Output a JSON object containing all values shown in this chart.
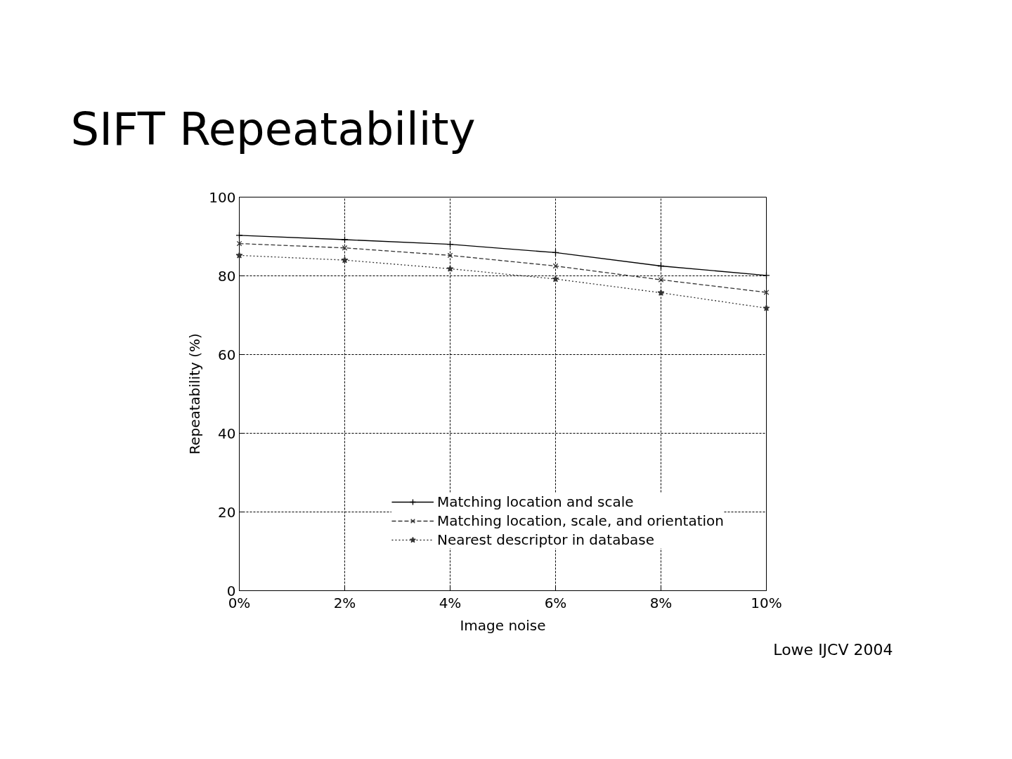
{
  "chart_data": {
    "type": "line",
    "title": "SIFT Repeatability",
    "xlabel": "Image noise",
    "ylabel": "Repeatability (%)",
    "x": [
      0,
      2,
      4,
      6,
      8,
      10
    ],
    "series": [
      {
        "name": "Matching location and scale",
        "color": "#000000",
        "marker": "cross",
        "line_style": "solid",
        "values": [
          90.3,
          89.2,
          88.0,
          85.9,
          82.5,
          80.1
        ]
      },
      {
        "name": "Matching location, scale, and orientation",
        "color": "#333333",
        "marker": "x",
        "line_style": "dashed",
        "values": [
          88.2,
          87.1,
          85.2,
          82.5,
          79.0,
          75.8
        ]
      },
      {
        "name": "Nearest descriptor in database",
        "color": "#333333",
        "marker": "star",
        "line_style": "dotted",
        "values": [
          85.2,
          84.0,
          81.8,
          79.2,
          75.7,
          71.8
        ]
      }
    ],
    "xlim": [
      0,
      10
    ],
    "ylim": [
      0,
      100
    ],
    "xticks": [
      {
        "value": 0,
        "label": "0%"
      },
      {
        "value": 2,
        "label": "2%"
      },
      {
        "value": 4,
        "label": "4%"
      },
      {
        "value": 6,
        "label": "6%"
      },
      {
        "value": 8,
        "label": "8%"
      },
      {
        "value": 10,
        "label": "10%"
      }
    ],
    "yticks": [
      0,
      20,
      40,
      60,
      80,
      100
    ],
    "grid": true,
    "legend": "bottom right",
    "annotations": [
      "Lowe IJCV 2004"
    ]
  }
}
